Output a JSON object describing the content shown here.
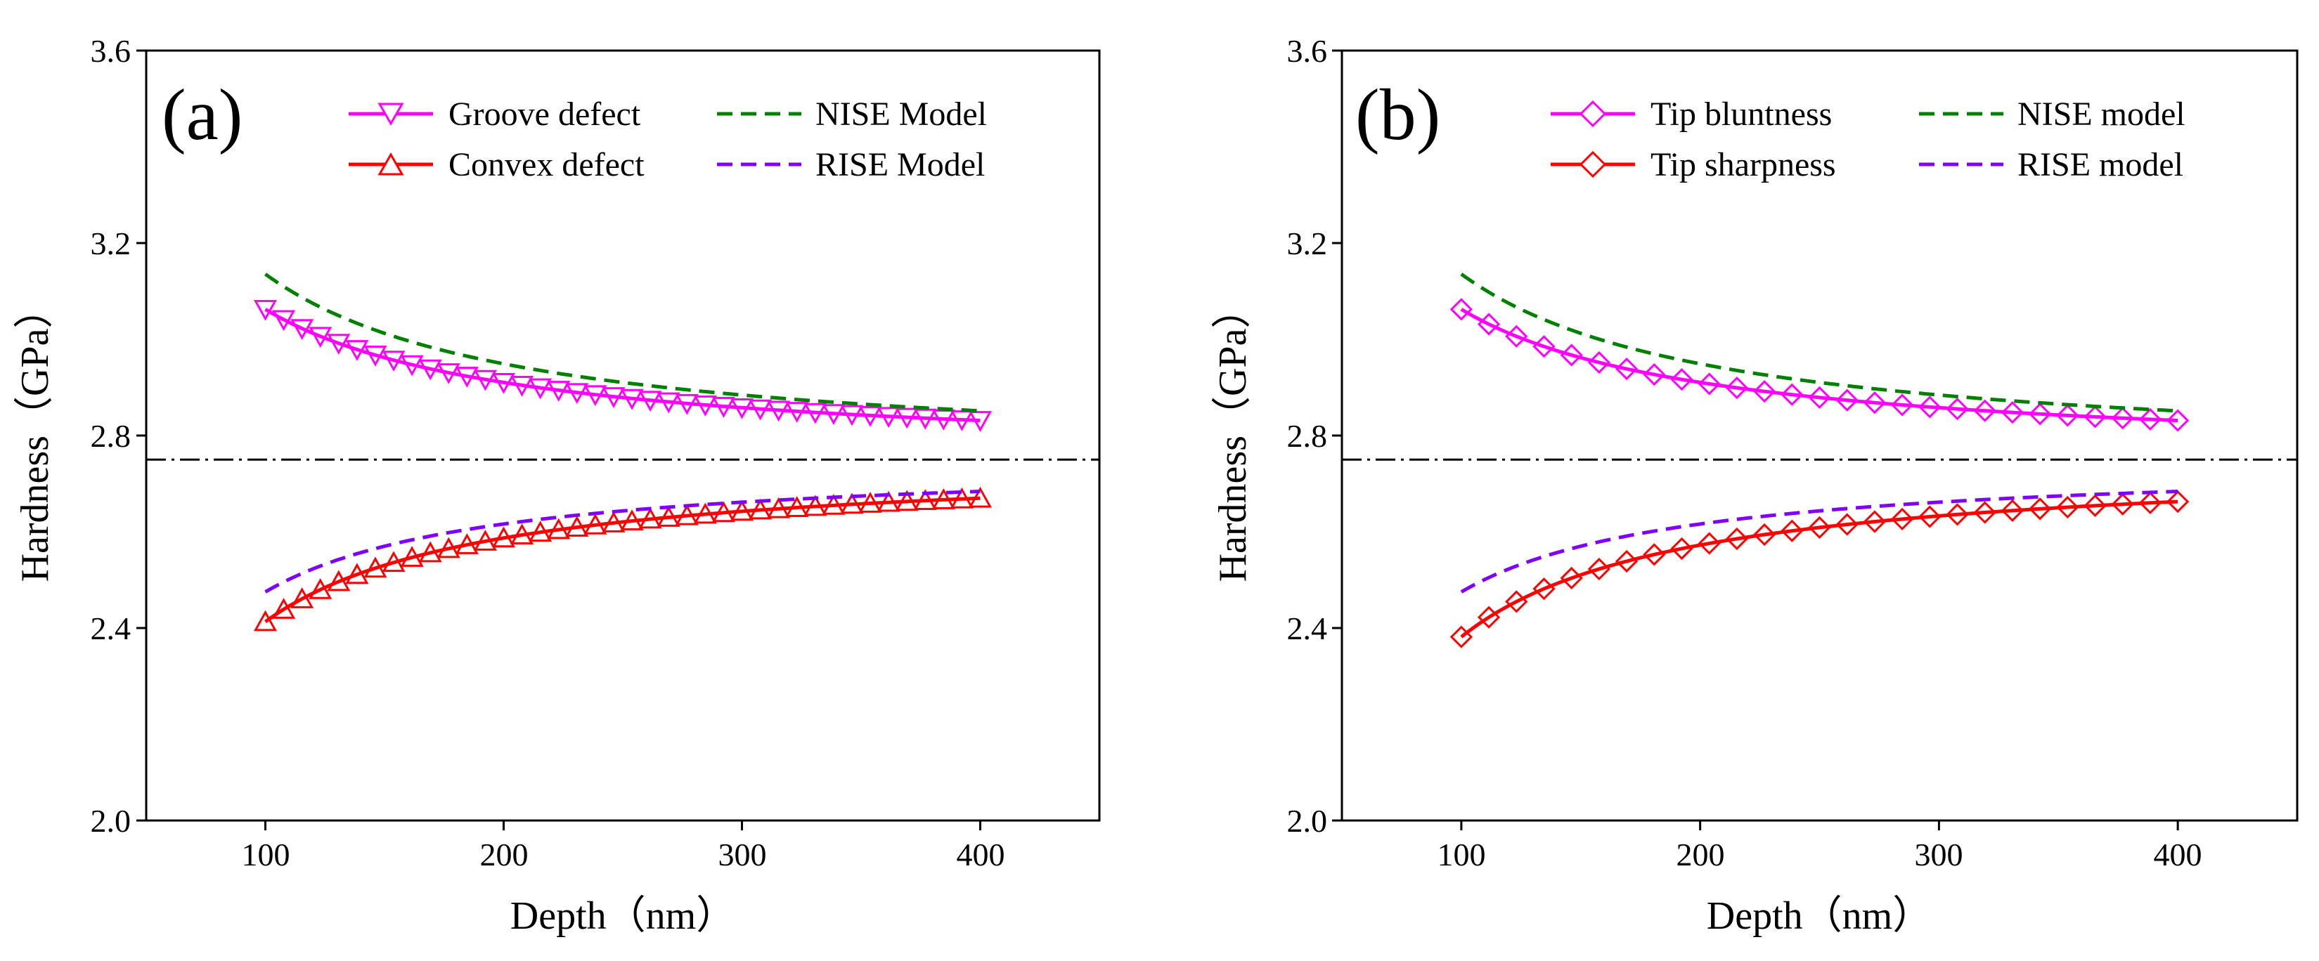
{
  "chart_data": [
    {
      "type": "line",
      "panel_label": "(a)",
      "xlabel": "Depth（nm）",
      "ylabel": "Hardness（GPa）",
      "xlim": [
        50,
        450
      ],
      "ylim": [
        2.0,
        3.6
      ],
      "xticks": [
        100,
        200,
        300,
        400
      ],
      "yticks": [
        2.0,
        2.4,
        2.8,
        3.2,
        3.6
      ],
      "x_tick_labels": [
        "100",
        "200",
        "300",
        "400"
      ],
      "y_tick_labels": [
        "2.0",
        "2.4",
        "2.8",
        "3.2",
        "3.6"
      ],
      "reference_line": 2.75,
      "legend_position": "top-right",
      "series": [
        {
          "name": "Groove defect",
          "kind": "marker",
          "marker": "triangle-down",
          "color": "#ff00ff",
          "H0": 2.75,
          "D": 24,
          "x_range": [
            100,
            400
          ],
          "marker_count": 40
        },
        {
          "name": "Convex defect",
          "kind": "marker",
          "marker": "triangle-up",
          "color": "#ff0000",
          "H0": 2.75,
          "D": -23,
          "x_range": [
            100,
            400
          ],
          "marker_count": 40
        },
        {
          "name": "NISE Model",
          "kind": "dashed",
          "color": "#008000",
          "H0": 2.75,
          "D": 30,
          "x_range": [
            100,
            400
          ]
        },
        {
          "name": "RISE Model",
          "kind": "dashed",
          "color": "#8000ff",
          "H0": 2.75,
          "D": -19,
          "x_range": [
            100,
            400
          ]
        }
      ]
    },
    {
      "type": "line",
      "panel_label": "(b)",
      "xlabel": "Depth（nm）",
      "ylabel": "Hardness（GPa）",
      "xlim": [
        50,
        450
      ],
      "ylim": [
        2.0,
        3.6
      ],
      "xticks": [
        100,
        200,
        300,
        400
      ],
      "yticks": [
        2.0,
        2.4,
        2.8,
        3.2,
        3.6
      ],
      "x_tick_labels": [
        "100",
        "200",
        "300",
        "400"
      ],
      "y_tick_labels": [
        "2.0",
        "2.4",
        "2.8",
        "3.2",
        "3.6"
      ],
      "reference_line": 2.75,
      "legend_position": "top-right",
      "series": [
        {
          "name": "Tip bluntness",
          "kind": "marker",
          "marker": "diamond",
          "color": "#ff00ff",
          "H0": 2.75,
          "D": 24,
          "x_range": [
            100,
            400
          ],
          "marker_count": 27
        },
        {
          "name": "Tip sharpness",
          "kind": "marker",
          "marker": "diamond",
          "color": "#ff0000",
          "H0": 2.75,
          "D": -25,
          "x_range": [
            100,
            400
          ],
          "marker_count": 27
        },
        {
          "name": "NISE model",
          "kind": "dashed",
          "color": "#008000",
          "H0": 2.75,
          "D": 30,
          "x_range": [
            100,
            400
          ]
        },
        {
          "name": "RISE model",
          "kind": "dashed",
          "color": "#8000ff",
          "H0": 2.75,
          "D": -19,
          "x_range": [
            100,
            400
          ]
        }
      ]
    }
  ]
}
